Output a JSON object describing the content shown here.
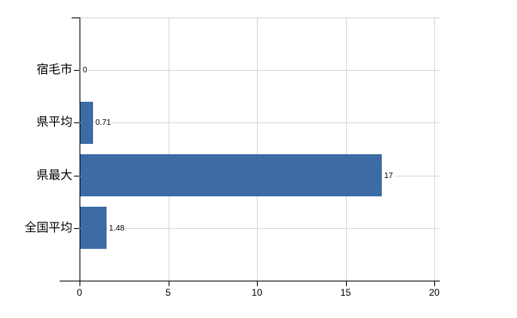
{
  "chart_data": {
    "type": "bar",
    "orientation": "horizontal",
    "title": "",
    "xlabel": "",
    "ylabel": "",
    "categories": [
      "宿毛市",
      "県平均",
      "県最大",
      "全国平均"
    ],
    "values": [
      0,
      0.71,
      17,
      1.48
    ],
    "value_labels": [
      "0",
      "0.71",
      "17",
      "1.48"
    ],
    "xlim": [
      0,
      20
    ],
    "xticks": [
      0,
      5,
      10,
      15,
      20
    ],
    "xtick_labels": [
      "0",
      "5",
      "10",
      "15",
      "20"
    ],
    "grid": true,
    "legend": false,
    "colors": {
      "bar": "#3d6ba6",
      "gridline": "#d9d9d9",
      "plot_top_border": "#d6d6d6",
      "axis": "#000000",
      "text": "#000000",
      "background": "#ffffff"
    }
  }
}
